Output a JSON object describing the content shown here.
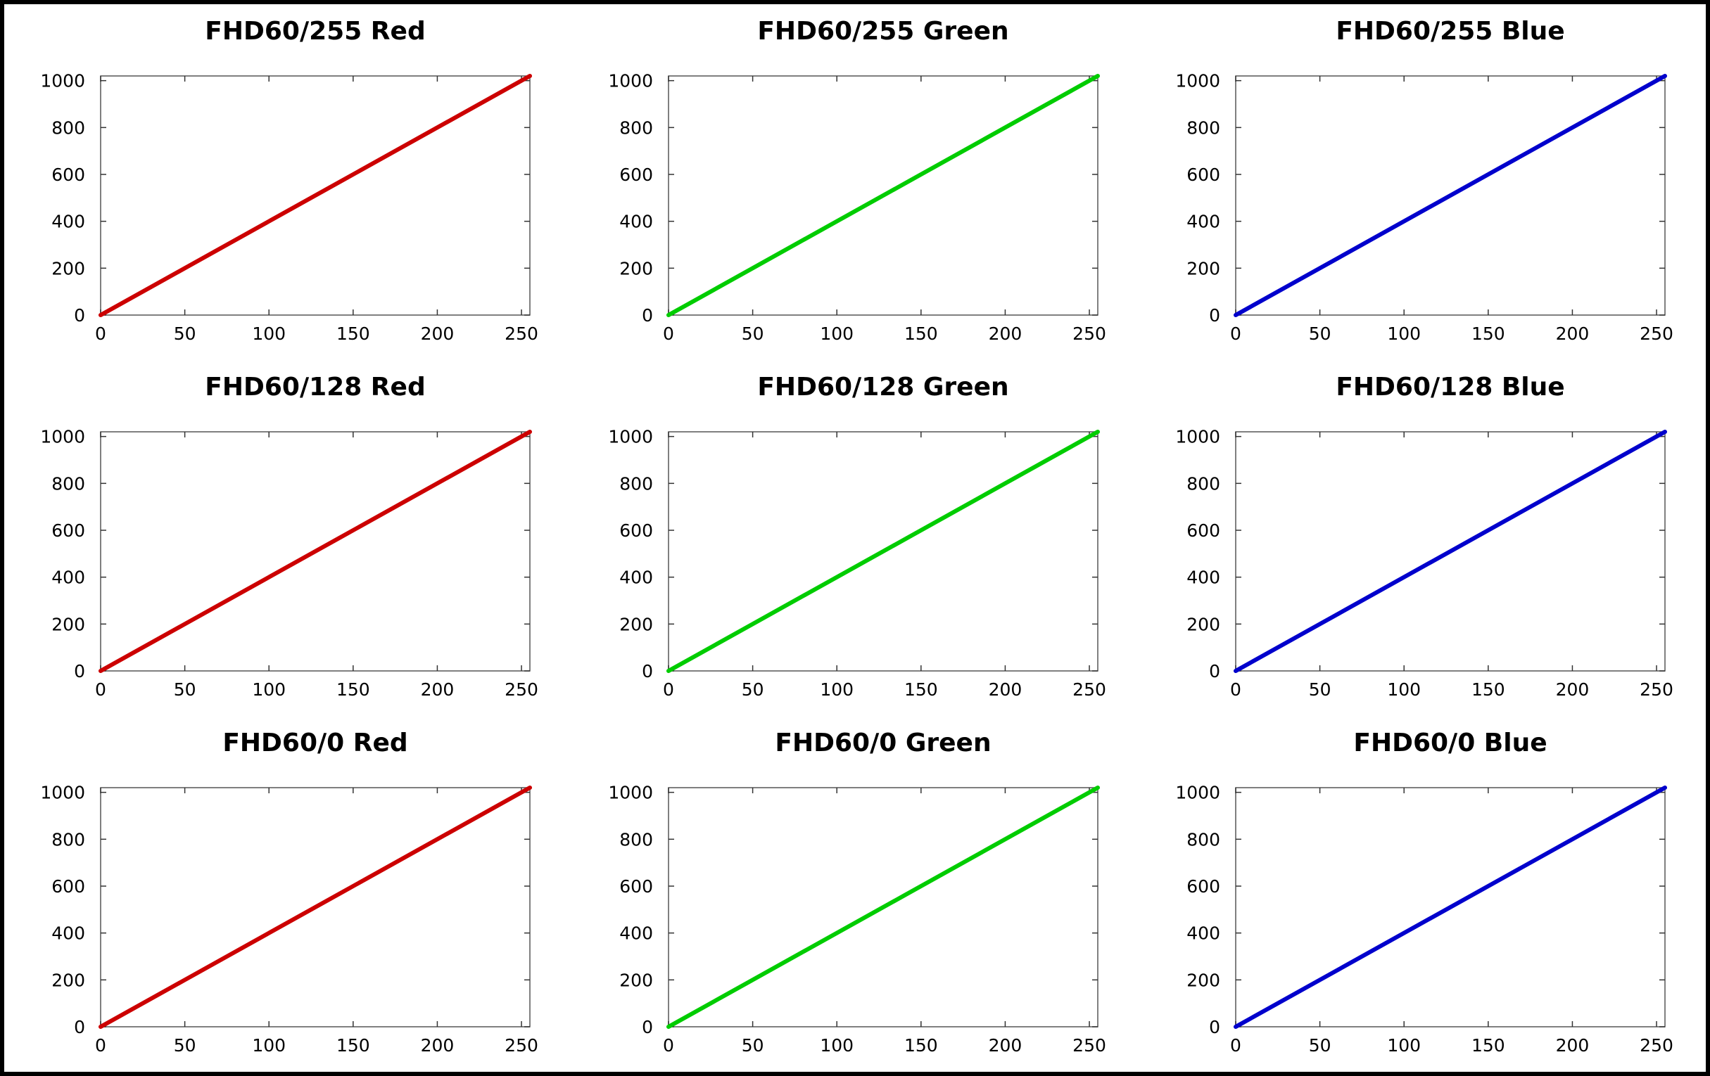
{
  "chart_data": [
    {
      "type": "line",
      "title": "FHD60/255 Red",
      "color": "#cc0000",
      "x": [
        0,
        255
      ],
      "y": [
        0,
        1020
      ],
      "xlim": [
        0,
        255
      ],
      "ylim": [
        0,
        1020
      ],
      "xticks": [
        0,
        50,
        100,
        150,
        200,
        250
      ],
      "yticks": [
        0,
        200,
        400,
        600,
        800,
        1000
      ],
      "grid": false
    },
    {
      "type": "line",
      "title": "FHD60/255 Green",
      "color": "#00cc00",
      "x": [
        0,
        255
      ],
      "y": [
        0,
        1020
      ],
      "xlim": [
        0,
        255
      ],
      "ylim": [
        0,
        1020
      ],
      "xticks": [
        0,
        50,
        100,
        150,
        200,
        250
      ],
      "yticks": [
        0,
        200,
        400,
        600,
        800,
        1000
      ],
      "grid": false
    },
    {
      "type": "line",
      "title": "FHD60/255 Blue",
      "color": "#0000cc",
      "x": [
        0,
        255
      ],
      "y": [
        0,
        1020
      ],
      "xlim": [
        0,
        255
      ],
      "ylim": [
        0,
        1020
      ],
      "xticks": [
        0,
        50,
        100,
        150,
        200,
        250
      ],
      "yticks": [
        0,
        200,
        400,
        600,
        800,
        1000
      ],
      "grid": false
    },
    {
      "type": "line",
      "title": "FHD60/128 Red",
      "color": "#cc0000",
      "x": [
        0,
        255
      ],
      "y": [
        0,
        1020
      ],
      "xlim": [
        0,
        255
      ],
      "ylim": [
        0,
        1020
      ],
      "xticks": [
        0,
        50,
        100,
        150,
        200,
        250
      ],
      "yticks": [
        0,
        200,
        400,
        600,
        800,
        1000
      ],
      "grid": false
    },
    {
      "type": "line",
      "title": "FHD60/128 Green",
      "color": "#00cc00",
      "x": [
        0,
        255
      ],
      "y": [
        0,
        1020
      ],
      "xlim": [
        0,
        255
      ],
      "ylim": [
        0,
        1020
      ],
      "xticks": [
        0,
        50,
        100,
        150,
        200,
        250
      ],
      "yticks": [
        0,
        200,
        400,
        600,
        800,
        1000
      ],
      "grid": false
    },
    {
      "type": "line",
      "title": "FHD60/128 Blue",
      "color": "#0000cc",
      "x": [
        0,
        255
      ],
      "y": [
        0,
        1020
      ],
      "xlim": [
        0,
        255
      ],
      "ylim": [
        0,
        1020
      ],
      "xticks": [
        0,
        50,
        100,
        150,
        200,
        250
      ],
      "yticks": [
        0,
        200,
        400,
        600,
        800,
        1000
      ],
      "grid": false
    },
    {
      "type": "line",
      "title": "FHD60/0 Red",
      "color": "#cc0000",
      "x": [
        0,
        255
      ],
      "y": [
        0,
        1020
      ],
      "xlim": [
        0,
        255
      ],
      "ylim": [
        0,
        1020
      ],
      "xticks": [
        0,
        50,
        100,
        150,
        200,
        250
      ],
      "yticks": [
        0,
        200,
        400,
        600,
        800,
        1000
      ],
      "grid": false
    },
    {
      "type": "line",
      "title": "FHD60/0 Green",
      "color": "#00cc00",
      "x": [
        0,
        255
      ],
      "y": [
        0,
        1020
      ],
      "xlim": [
        0,
        255
      ],
      "ylim": [
        0,
        1020
      ],
      "xticks": [
        0,
        50,
        100,
        150,
        200,
        250
      ],
      "yticks": [
        0,
        200,
        400,
        600,
        800,
        1000
      ],
      "grid": false
    },
    {
      "type": "line",
      "title": "FHD60/0 Blue",
      "color": "#0000cc",
      "x": [
        0,
        255
      ],
      "y": [
        0,
        1020
      ],
      "xlim": [
        0,
        255
      ],
      "ylim": [
        0,
        1020
      ],
      "xticks": [
        0,
        50,
        100,
        150,
        200,
        250
      ],
      "yticks": [
        0,
        200,
        400,
        600,
        800,
        1000
      ],
      "grid": false
    }
  ]
}
